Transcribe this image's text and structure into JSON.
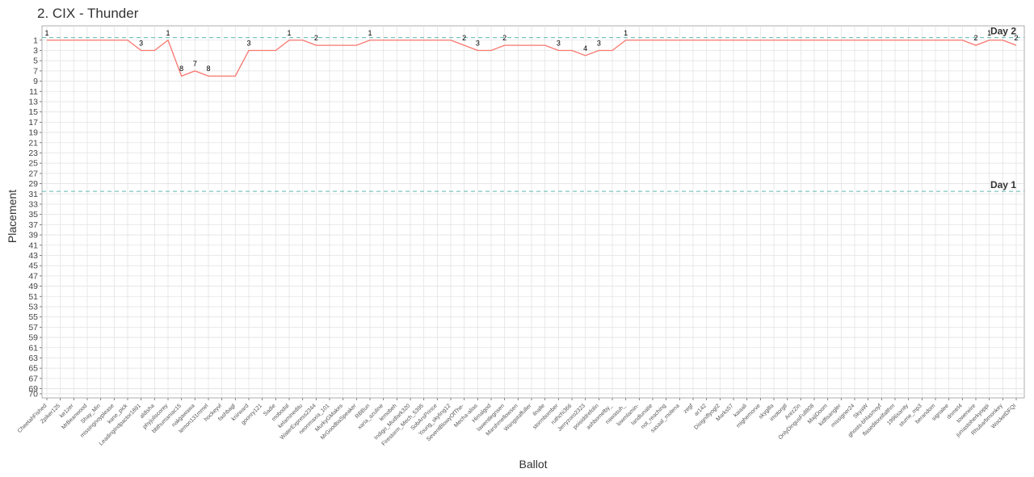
{
  "chart_data": {
    "type": "line",
    "title": "2. CIX - Thunder",
    "x_label": "Ballot",
    "y_label": "Placement",
    "categories": [
      "CheetahFished",
      "Zpiker125",
      "ke1zer",
      "MrBeanwood",
      "Shay_Min",
      "missingnoyplease",
      "kane_pick",
      "LeadingIndpactor1891",
      "aldisha",
      "phyjuliscorey",
      "bbthumaniac15",
      "nakgawawa",
      "lemon131mmel",
      "hockeyvl",
      "fashbagl",
      "knirward",
      "goonry121",
      "Sadie",
      "mobodal",
      "kelamineditu",
      "WaterExpress2344",
      "neonmaxia_101",
      "MurkyGMakes",
      "MrGoodbaSpeaker",
      "RBBun",
      "xaria_azuline",
      "lemobeh",
      "Indigo_Mudlark320",
      "Firestorm_Mech_5395",
      "SobArsPrince",
      "Young_skyling12",
      "SeventBlowyOfThe-",
      "Mecha-alias",
      "Himalgod",
      "lawentlegnsen",
      "Marshmellowsen",
      "Wangstaffuller",
      "ilnalle",
      "stormbomber",
      "ruthchi366",
      "Jerryzoro2323",
      "poisiddrefolin",
      "ashbomelby_",
      "nawasuh_",
      "lowmlamin-",
      "landlunatie",
      "not_reaching",
      "sasaal_molena",
      "zegf",
      "ar142",
      "DisigniflyogI2",
      "Marks57",
      "kaiaali",
      "mighemorve",
      "skygilla",
      "imotorgtl",
      "ArezZin",
      "OnlyDingusFull808",
      "MajiDoom",
      "kidfisangler",
      "missigner24",
      "SkyaW",
      "ghosts-bhlasmoyf",
      "flaseditorelfalthm",
      "1996sanity",
      "stume_mp3",
      "berandom",
      "signalee",
      "dnmtrl4",
      "towerwire",
      "juniastoherkyoppi",
      "Rhubarbmonkey",
      "WocketDFQI"
    ],
    "series": [
      {
        "name": "Thunder",
        "color": "#f8766d",
        "values": [
          1,
          1,
          1,
          1,
          1,
          1,
          1,
          3,
          3,
          1,
          8,
          7,
          8,
          8,
          8,
          3,
          3,
          3,
          1,
          1,
          2,
          2,
          2,
          2,
          1,
          1,
          1,
          1,
          1,
          1,
          1,
          2,
          3,
          3,
          2,
          2,
          2,
          2,
          3,
          3,
          4,
          3,
          3,
          1,
          1,
          1,
          1,
          1,
          1,
          1,
          1,
          1,
          1,
          1,
          1,
          1,
          1,
          1,
          1,
          1,
          1,
          1,
          1,
          1,
          1,
          1,
          1,
          1,
          1,
          2,
          1,
          1,
          2
        ]
      }
    ],
    "ylim": [
      -1.8,
      70.8
    ],
    "y_reversed": true,
    "yticks": [
      1,
      3,
      5,
      7,
      9,
      11,
      13,
      15,
      17,
      19,
      21,
      23,
      25,
      27,
      29,
      31,
      33,
      35,
      37,
      39,
      41,
      43,
      45,
      47,
      49,
      51,
      53,
      55,
      57,
      59,
      61,
      63,
      65,
      67,
      69,
      70
    ],
    "grid": true,
    "annotations": [
      {
        "label": "Day 2",
        "value": 0.5,
        "color": "#5fb8b0"
      },
      {
        "label": "Day 1",
        "value": 30.5,
        "color": "#5fb8b0"
      }
    ]
  }
}
